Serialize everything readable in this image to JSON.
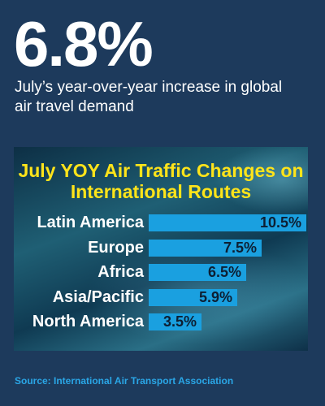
{
  "headline": "6.8%",
  "subhead": "July’s year-over-year increase in global air travel demand",
  "source": "Source: International Air Transport Association",
  "colors": {
    "background": "#1d3a5c",
    "bar": "#1aa0e0",
    "title": "#ffe41a",
    "source": "#2aa6e6"
  },
  "chart_data": {
    "type": "bar",
    "orientation": "horizontal",
    "title": "July YOY Air Traffic Changes on International Routes",
    "categories": [
      "Latin America",
      "Europe",
      "Africa",
      "Asia/Pacific",
      "North America"
    ],
    "values": [
      10.5,
      7.5,
      6.5,
      5.9,
      3.5
    ],
    "value_labels": [
      "10.5%",
      "7.5%",
      "6.5%",
      "5.9%",
      "3.5%"
    ],
    "xlim": [
      0,
      10.5
    ],
    "grid": false,
    "xlabel": "",
    "ylabel": ""
  }
}
